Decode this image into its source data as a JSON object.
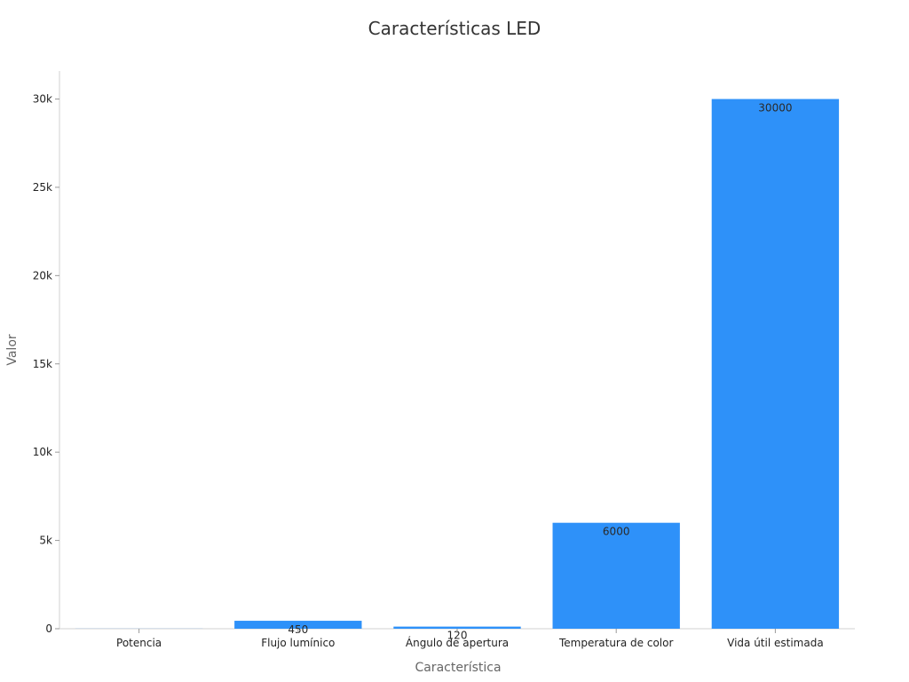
{
  "chart_data": {
    "type": "bar",
    "title": "Características LED",
    "xlabel": "Característica",
    "ylabel": "Valor",
    "categories": [
      "Potencia",
      "Flujo lumínico",
      "Ángulo de apertura",
      "Temperatura de color",
      "Vida útil estimada"
    ],
    "values": [
      5,
      450,
      120,
      6000,
      30000
    ],
    "data_labels": [
      "",
      "450",
      "120",
      "6000",
      "30000"
    ],
    "ylim": [
      0,
      31600
    ],
    "yticks": [
      0,
      5000,
      10000,
      15000,
      20000,
      25000,
      30000
    ],
    "ytick_labels": [
      "0",
      "5k",
      "10k",
      "15k",
      "20k",
      "25k",
      "30k"
    ],
    "bar_color": "#2e91f9",
    "grid": false,
    "legend": "none"
  }
}
